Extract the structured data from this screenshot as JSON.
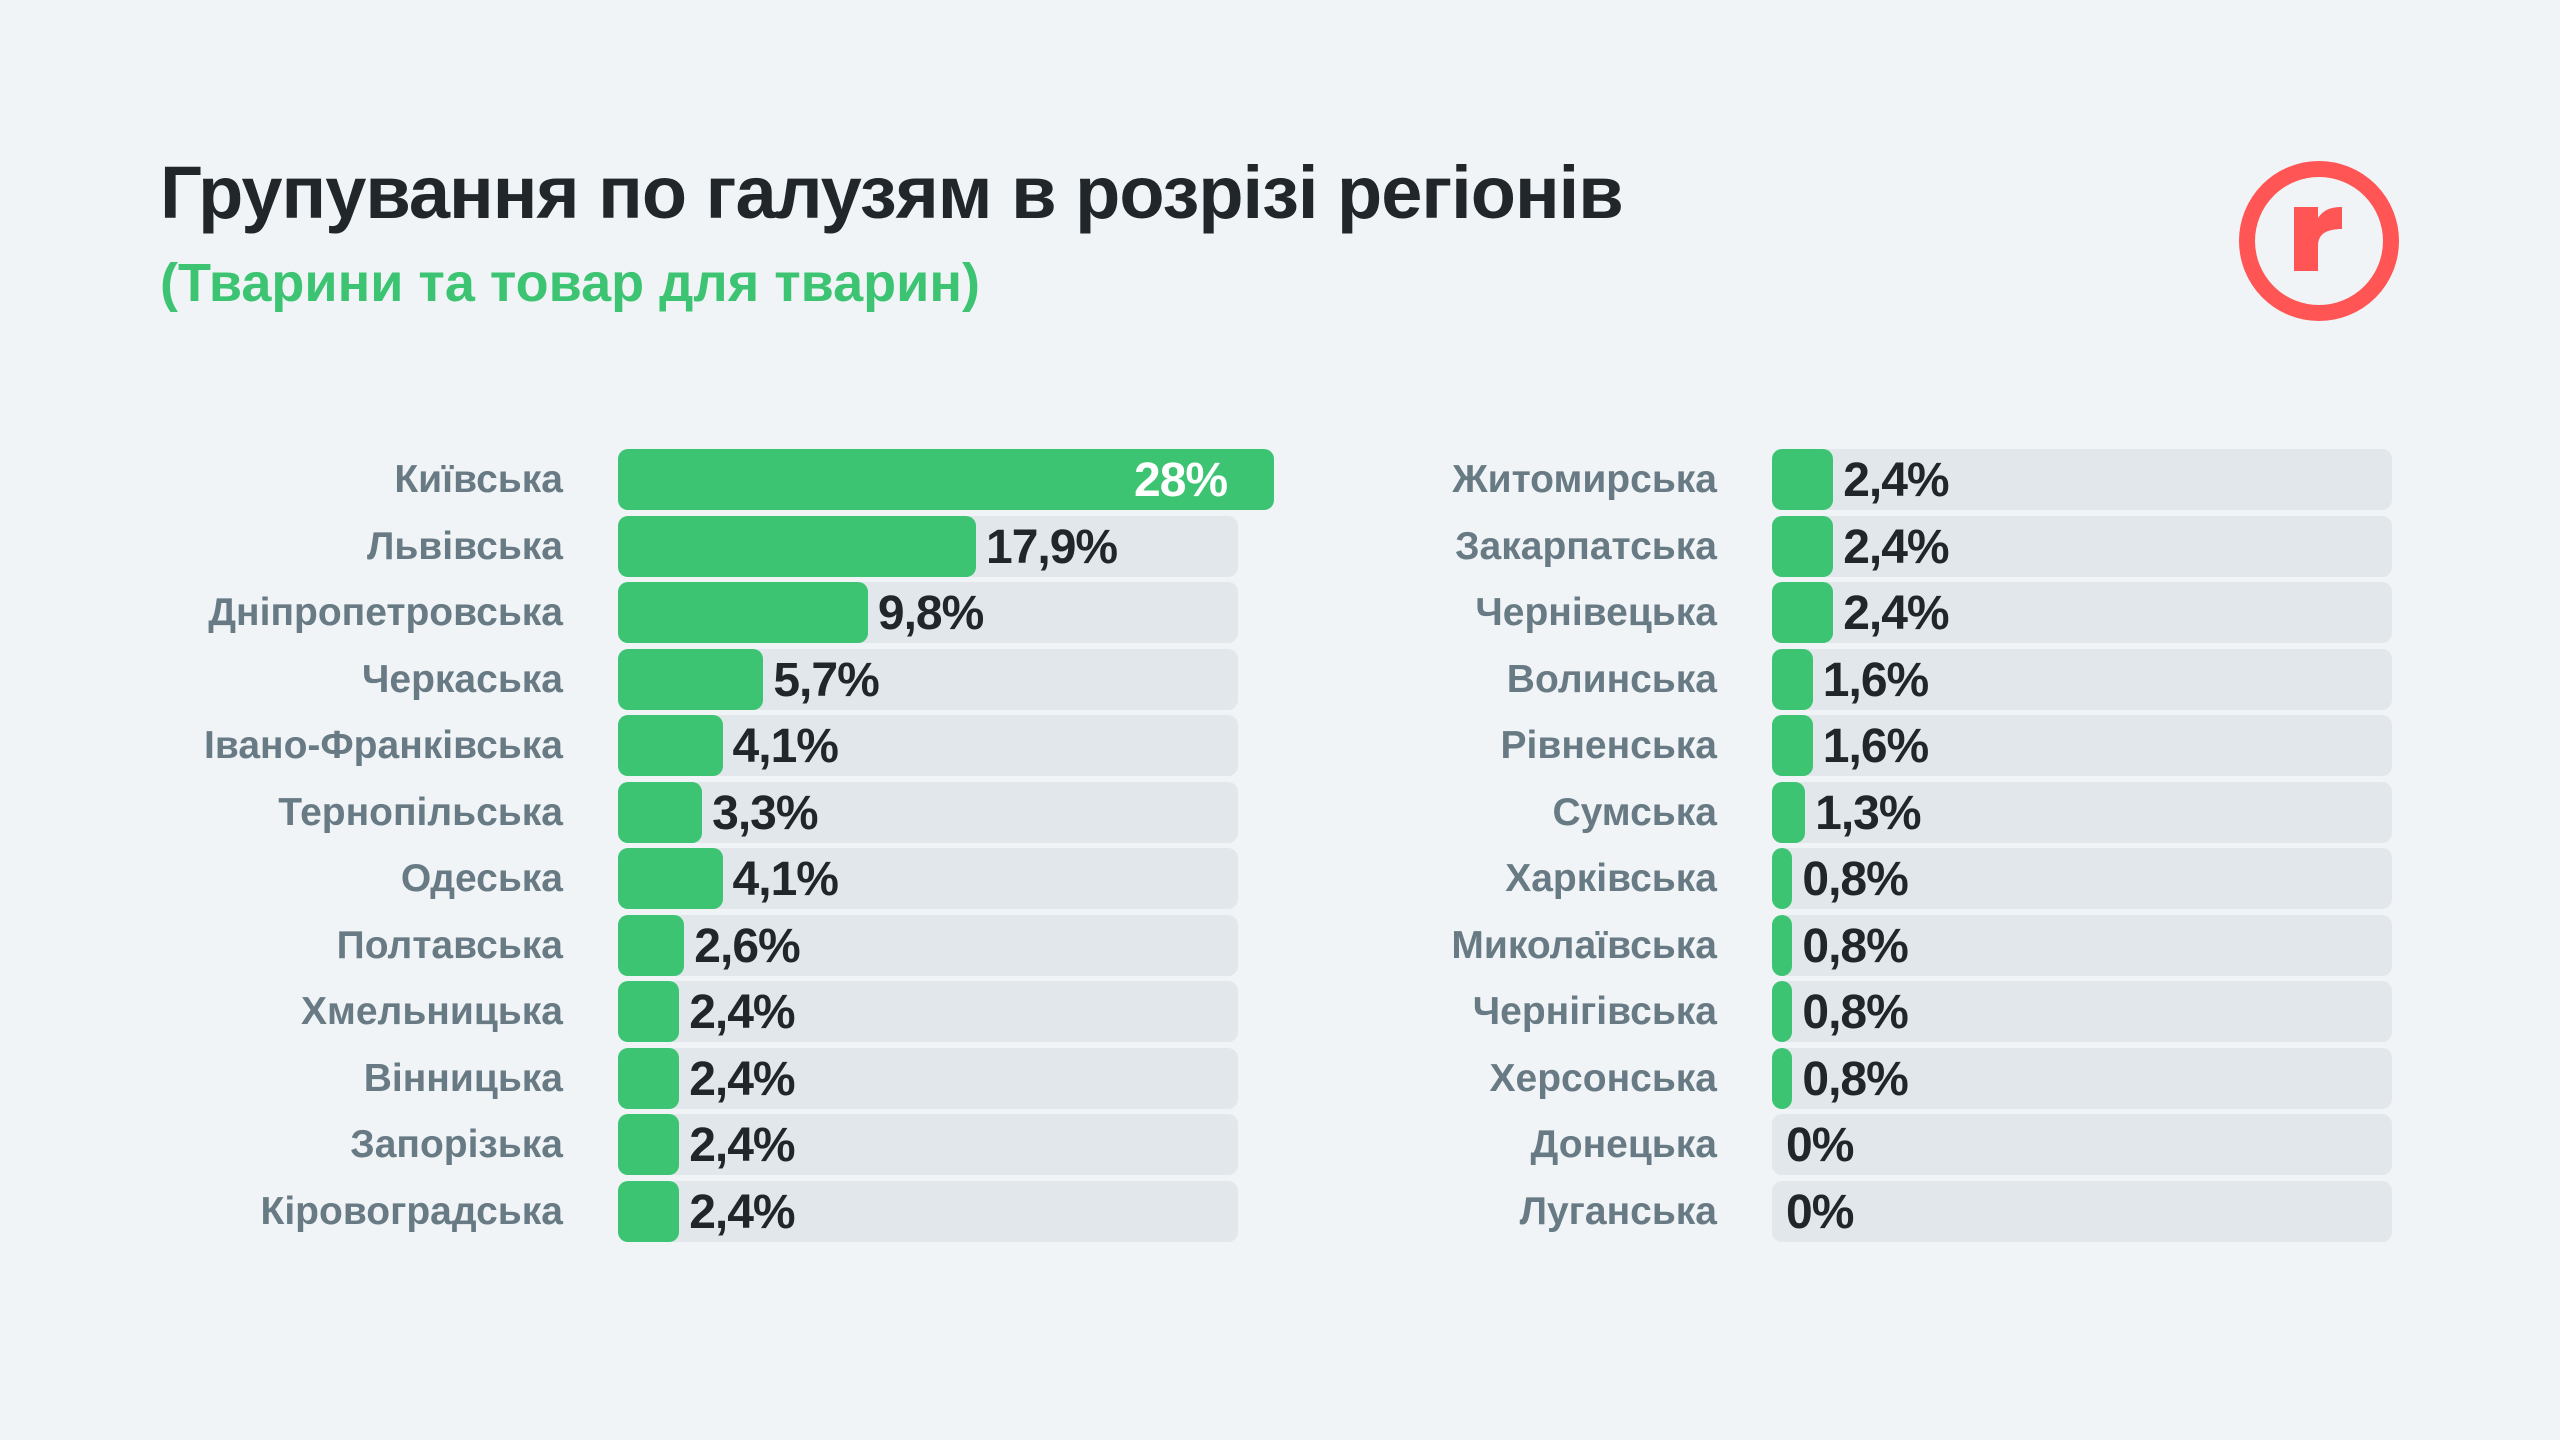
{
  "header": {
    "title": "Групування по галузям в розрізі регіонів",
    "subtitle": "(Тварини та товар для тварин)"
  },
  "logo": {
    "letter": "r",
    "color": "#ff5555"
  },
  "colors": {
    "bar": "#3cc472",
    "track": "#e1e7ea",
    "label": "#687a84",
    "value": "#20262a"
  },
  "chart_data": [
    {
      "type": "bar",
      "orientation": "horizontal",
      "categories": [
        "Київська",
        "Львівська",
        "Дніпропетровська",
        "Черкаська",
        "Івано-Франківська",
        "Тернопільська",
        "Одеська",
        "Полтавська",
        "Хмельницька",
        "Вінницька",
        "Запорізька",
        "Кіровоградська"
      ],
      "values": [
        28,
        17.9,
        9.8,
        5.7,
        4.1,
        3.3,
        4.1,
        2.6,
        2.4,
        2.4,
        2.4,
        2.4
      ],
      "labels": [
        "28%",
        "17,9%",
        "9,8%",
        "5,7%",
        "4,1%",
        "3,3%",
        "4,1%",
        "2,6%",
        "2,4%",
        "2,4%",
        "2,4%",
        "2,4%"
      ],
      "unit": "%"
    },
    {
      "type": "bar",
      "orientation": "horizontal",
      "categories": [
        "Житомирська",
        "Закарпатська",
        "Чернівецька",
        "Волинська",
        "Рівненська",
        "Сумська",
        "Харківська",
        "Миколаївська",
        "Чернігівська",
        "Херсонська",
        "Донецька",
        "Луганська"
      ],
      "values": [
        2.4,
        2.4,
        2.4,
        1.6,
        1.6,
        1.3,
        0.8,
        0.8,
        0.8,
        0.8,
        0,
        0
      ],
      "labels": [
        "2,4%",
        "2,4%",
        "2,4%",
        "1,6%",
        "1,6%",
        "1,3%",
        "0,8%",
        "0,8%",
        "0,8%",
        "0,8%",
        "0%",
        "0%"
      ],
      "unit": "%"
    }
  ]
}
